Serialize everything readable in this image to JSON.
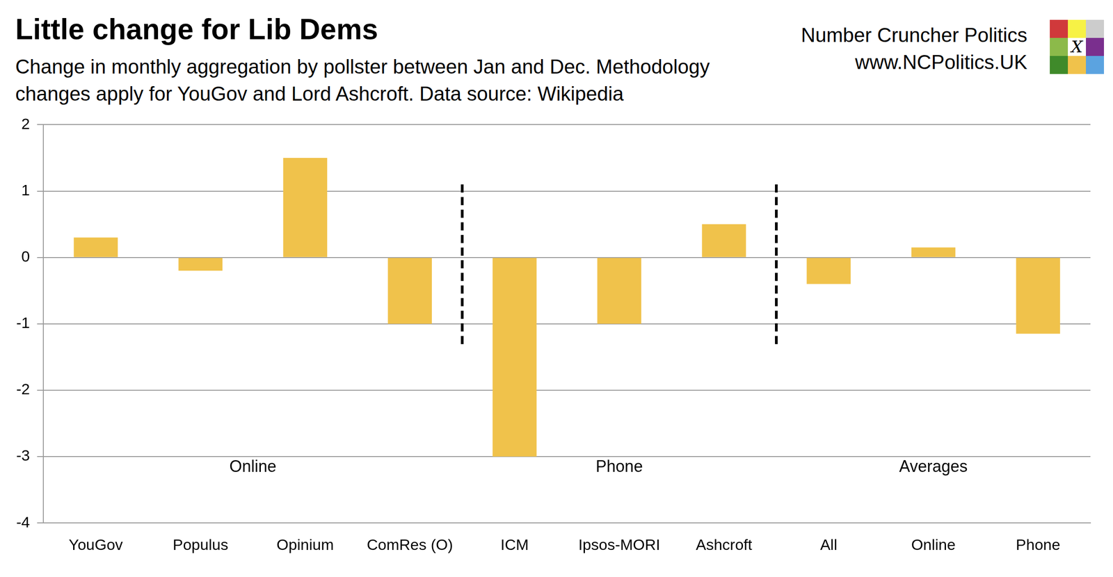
{
  "chart_data": {
    "type": "bar",
    "title": "Little change for Lib Dems",
    "subtitle": "Change in monthly aggregation by pollster between Jan and Dec. Methodology changes apply for YouGov and Lord Ashcroft. Data source: Wikipedia",
    "source": {
      "name": "Number Cruncher Politics",
      "url": "www.NCPolitics.UK",
      "logo_mark": "X"
    },
    "categories": [
      "YouGov",
      "Populus",
      "Opinium",
      "ComRes (O)",
      "ICM",
      "Ipsos-MORI",
      "Ashcroft",
      "All",
      "Online",
      "Phone"
    ],
    "values": [
      0.3,
      -0.2,
      1.5,
      -1.0,
      -3.0,
      -1.0,
      0.5,
      -0.4,
      0.15,
      -1.15
    ],
    "color": "#f0c24b",
    "groups": [
      {
        "label": "Online",
        "categories": [
          "YouGov",
          "Populus",
          "Opinium",
          "ComRes (O)"
        ]
      },
      {
        "label": "Phone",
        "categories": [
          "ICM",
          "Ipsos-MORI",
          "Ashcroft"
        ]
      },
      {
        "label": "Averages",
        "categories": [
          "All",
          "Online",
          "Phone"
        ]
      }
    ],
    "ylim": [
      -4,
      2
    ],
    "yticks": [
      -4,
      -3,
      -2,
      -1,
      0,
      1,
      2
    ],
    "grid": true
  }
}
